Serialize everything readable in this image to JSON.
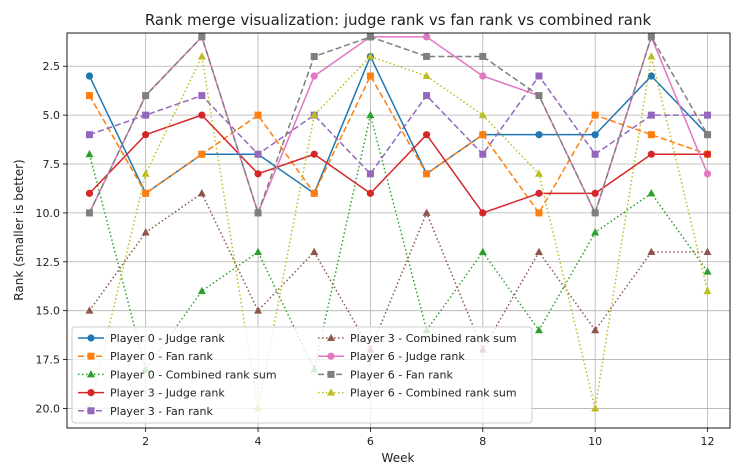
{
  "chart_data": {
    "type": "line",
    "title": "Rank merge visualization: judge rank vs fan rank vs combined rank",
    "xlabel": "Week",
    "ylabel": "Rank (smaller is better)",
    "x": [
      1,
      2,
      3,
      4,
      5,
      6,
      7,
      8,
      9,
      10,
      11,
      12
    ],
    "xlim": [
      0.6,
      12.4
    ],
    "ylim": [
      21.0,
      0.8
    ],
    "y_inverted": true,
    "xticks": [
      2,
      4,
      6,
      8,
      10,
      12
    ],
    "yticks": [
      2.5,
      5.0,
      7.5,
      10.0,
      12.5,
      15.0,
      17.5,
      20.0
    ],
    "xtick_labels": [
      "2",
      "4",
      "6",
      "8",
      "10",
      "12"
    ],
    "ytick_labels": [
      "2.5",
      "5.0",
      "7.5",
      "10.0",
      "12.5",
      "15.0",
      "17.5",
      "20.0"
    ],
    "grid": true,
    "legend_position": "lower-left",
    "series": [
      {
        "name": "Player 0 - Judge rank",
        "color": "#1f77b4",
        "dash": "solid",
        "marker": "circle",
        "values": [
          3,
          9,
          7,
          7,
          9,
          2,
          8,
          6,
          6,
          6,
          3,
          6
        ]
      },
      {
        "name": "Player 0 - Fan rank",
        "color": "#ff7f0e",
        "dash": "dashed",
        "marker": "square",
        "values": [
          4,
          9,
          7,
          5,
          9,
          3,
          8,
          6,
          10,
          5,
          6,
          7
        ]
      },
      {
        "name": "Player 0 - Combined rank sum",
        "color": "#2ca02c",
        "dash": "dotted",
        "marker": "triangle",
        "values": [
          7,
          18,
          14,
          12,
          18,
          5,
          16,
          12,
          16,
          11,
          9,
          13
        ]
      },
      {
        "name": "Player 3 - Judge rank",
        "color": "#d62728",
        "dash": "solid",
        "marker": "circle",
        "values": [
          9,
          6,
          5,
          8,
          7,
          9,
          6,
          10,
          9,
          9,
          7,
          7
        ]
      },
      {
        "name": "Player 3 - Fan rank",
        "color": "#9467bd",
        "dash": "dashed",
        "marker": "square",
        "values": [
          6,
          5,
          4,
          7,
          5,
          8,
          4,
          7,
          3,
          7,
          5,
          5
        ]
      },
      {
        "name": "Player 3 - Combined rank sum",
        "color": "#8c564b",
        "dash": "dotted",
        "marker": "triangle",
        "values": [
          15,
          11,
          9,
          15,
          12,
          17,
          10,
          17,
          12,
          16,
          12,
          12
        ]
      },
      {
        "name": "Player 6 - Judge rank",
        "color": "#e377c2",
        "dash": "solid",
        "marker": "circle",
        "values": [
          10,
          4,
          1,
          10,
          3,
          1,
          1,
          3,
          4,
          10,
          1,
          8
        ]
      },
      {
        "name": "Player 6 - Fan rank",
        "color": "#7f7f7f",
        "dash": "dashed",
        "marker": "square",
        "values": [
          10,
          4,
          1,
          10,
          2,
          1,
          2,
          2,
          4,
          10,
          1,
          6
        ]
      },
      {
        "name": "Player 6 - Combined rank sum",
        "color": "#bcbd22",
        "dash": "dotted",
        "marker": "triangle",
        "values": [
          20,
          8,
          2,
          20,
          5,
          2,
          3,
          5,
          8,
          20,
          2,
          14
        ]
      }
    ]
  }
}
